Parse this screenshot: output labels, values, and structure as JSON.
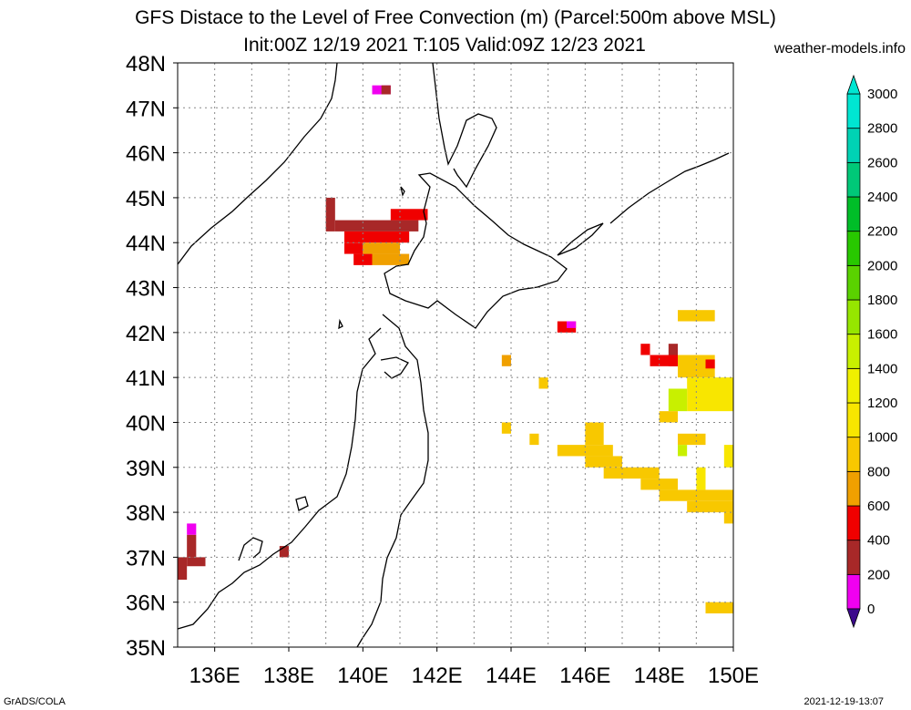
{
  "title_line1": "GFS Distace to the Level of Free Convection (m) (Parcel:500m above MSL)",
  "title_line2": "Init:00Z 12/19 2021 T:105 Valid:09Z 12/23 2021",
  "site": "weather-models.info",
  "footer_left": "GrADS/COLA",
  "footer_right": "2021-12-19-13:07",
  "lat_labels": [
    "48N",
    "47N",
    "46N",
    "45N",
    "44N",
    "43N",
    "42N",
    "41N",
    "40N",
    "39N",
    "38N",
    "37N",
    "36N",
    "35N"
  ],
  "lon_labels": [
    "136E",
    "138E",
    "140E",
    "142E",
    "144E",
    "146E",
    "148E",
    "150E"
  ],
  "map_extent": {
    "lon_min": 135,
    "lon_max": 150,
    "lat_min": 35,
    "lat_max": 48
  },
  "colorbar": {
    "levels": [
      "0",
      "200",
      "400",
      "600",
      "800",
      "1000",
      "1200",
      "1400",
      "1600",
      "1800",
      "2000",
      "2200",
      "2400",
      "2600",
      "2800",
      "3000"
    ],
    "colors": [
      "#3c0a8c",
      "#f000f0",
      "#a82828",
      "#f00000",
      "#f0a000",
      "#f8c800",
      "#f8e600",
      "#f0f000",
      "#c8f000",
      "#96e600",
      "#5ad200",
      "#28c800",
      "#00be28",
      "#00c878",
      "#00d2b4",
      "#00e6d2"
    ]
  },
  "cells": [
    {
      "lon": [
        135.0,
        135.25
      ],
      "lat": [
        36.5,
        37.0
      ],
      "color": "#a82828"
    },
    {
      "lon": [
        135.25,
        135.75
      ],
      "lat": [
        36.8,
        37.0
      ],
      "color": "#a82828"
    },
    {
      "lon": [
        135.25,
        135.5
      ],
      "lat": [
        37.0,
        37.5
      ],
      "color": "#a82828"
    },
    {
      "lon": [
        135.25,
        135.5
      ],
      "lat": [
        37.5,
        37.75
      ],
      "color": "#f000f0"
    },
    {
      "lon": [
        137.75,
        138.0
      ],
      "lat": [
        37.0,
        37.25
      ],
      "color": "#a82828"
    },
    {
      "lon": [
        140.25,
        140.75
      ],
      "lat": [
        47.3,
        47.5
      ],
      "color": "#f000f0"
    },
    {
      "lon": [
        140.5,
        140.75
      ],
      "lat": [
        47.3,
        47.5
      ],
      "color": "#a82828"
    },
    {
      "lon": [
        139.0,
        139.25
      ],
      "lat": [
        44.25,
        45.0
      ],
      "color": "#a82828"
    },
    {
      "lon": [
        139.25,
        141.5
      ],
      "lat": [
        44.25,
        44.5
      ],
      "color": "#a82828"
    },
    {
      "lon": [
        140.75,
        141.75
      ],
      "lat": [
        44.5,
        44.75
      ],
      "color": "#f00000"
    },
    {
      "lon": [
        139.5,
        141.25
      ],
      "lat": [
        44.0,
        44.25
      ],
      "color": "#f00000"
    },
    {
      "lon": [
        139.5,
        140.0
      ],
      "lat": [
        43.75,
        44.0
      ],
      "color": "#f00000"
    },
    {
      "lon": [
        139.75,
        140.25
      ],
      "lat": [
        43.5,
        43.75
      ],
      "color": "#f00000"
    },
    {
      "lon": [
        140.0,
        141.0
      ],
      "lat": [
        43.75,
        44.0
      ],
      "color": "#f0a000"
    },
    {
      "lon": [
        140.25,
        141.25
      ],
      "lat": [
        43.5,
        43.75
      ],
      "color": "#f0a000"
    },
    {
      "lon": [
        145.25,
        145.75
      ],
      "lat": [
        42.0,
        42.25
      ],
      "color": "#f00000"
    },
    {
      "lon": [
        145.5,
        145.75
      ],
      "lat": [
        42.1,
        42.25
      ],
      "color": "#f000f0"
    },
    {
      "lon": [
        143.75,
        144.0
      ],
      "lat": [
        41.25,
        41.5
      ],
      "color": "#f0a000"
    },
    {
      "lon": [
        144.75,
        145.0
      ],
      "lat": [
        40.75,
        41.0
      ],
      "color": "#f8c800"
    },
    {
      "lon": [
        143.75,
        144.0
      ],
      "lat": [
        39.75,
        40.0
      ],
      "color": "#f8c800"
    },
    {
      "lon": [
        144.5,
        144.75
      ],
      "lat": [
        39.5,
        39.75
      ],
      "color": "#f8c800"
    },
    {
      "lon": [
        147.5,
        147.75
      ],
      "lat": [
        41.5,
        41.75
      ],
      "color": "#f00000"
    },
    {
      "lon": [
        148.25,
        148.5
      ],
      "lat": [
        41.25,
        41.75
      ],
      "color": "#a82828"
    },
    {
      "lon": [
        147.75,
        149.0
      ],
      "lat": [
        41.25,
        41.5
      ],
      "color": "#f00000"
    },
    {
      "lon": [
        148.5,
        149.5
      ],
      "lat": [
        42.25,
        42.5
      ],
      "color": "#f8c800"
    },
    {
      "lon": [
        148.5,
        149.5
      ],
      "lat": [
        41.0,
        41.5
      ],
      "color": "#f8c800"
    },
    {
      "lon": [
        149.25,
        149.5
      ],
      "lat": [
        41.2,
        41.4
      ],
      "color": "#f00000"
    },
    {
      "lon": [
        148.75,
        150.0
      ],
      "lat": [
        40.25,
        41.0
      ],
      "color": "#f8e600"
    },
    {
      "lon": [
        148.25,
        148.75
      ],
      "lat": [
        40.25,
        40.75
      ],
      "color": "#c8f000"
    },
    {
      "lon": [
        148.0,
        148.5
      ],
      "lat": [
        40.0,
        40.25
      ],
      "color": "#f8c800"
    },
    {
      "lon": [
        148.5,
        149.25
      ],
      "lat": [
        39.5,
        39.75
      ],
      "color": "#f8c800"
    },
    {
      "lon": [
        148.5,
        148.75
      ],
      "lat": [
        39.25,
        39.5
      ],
      "color": "#c8f000"
    },
    {
      "lon": [
        149.75,
        150.0
      ],
      "lat": [
        39.0,
        39.5
      ],
      "color": "#f8e600"
    },
    {
      "lon": [
        146.0,
        146.5
      ],
      "lat": [
        39.5,
        40.0
      ],
      "color": "#f8c800"
    },
    {
      "lon": [
        145.25,
        146.75
      ],
      "lat": [
        39.25,
        39.5
      ],
      "color": "#f8c800"
    },
    {
      "lon": [
        146.0,
        147.0
      ],
      "lat": [
        39.0,
        39.25
      ],
      "color": "#f8c800"
    },
    {
      "lon": [
        146.5,
        148.0
      ],
      "lat": [
        38.75,
        39.0
      ],
      "color": "#f8c800"
    },
    {
      "lon": [
        147.5,
        148.5
      ],
      "lat": [
        38.5,
        38.75
      ],
      "color": "#f8c800"
    },
    {
      "lon": [
        148.0,
        150.0
      ],
      "lat": [
        38.25,
        38.5
      ],
      "color": "#f8c800"
    },
    {
      "lon": [
        148.75,
        150.0
      ],
      "lat": [
        38.0,
        38.25
      ],
      "color": "#f8c800"
    },
    {
      "lon": [
        149.75,
        150.0
      ],
      "lat": [
        37.75,
        38.0
      ],
      "color": "#f8c800"
    },
    {
      "lon": [
        149.0,
        149.25
      ],
      "lat": [
        38.5,
        39.0
      ],
      "color": "#f8e600"
    },
    {
      "lon": [
        149.25,
        150.0
      ],
      "lat": [
        35.75,
        36.0
      ],
      "color": "#f8c800"
    }
  ]
}
